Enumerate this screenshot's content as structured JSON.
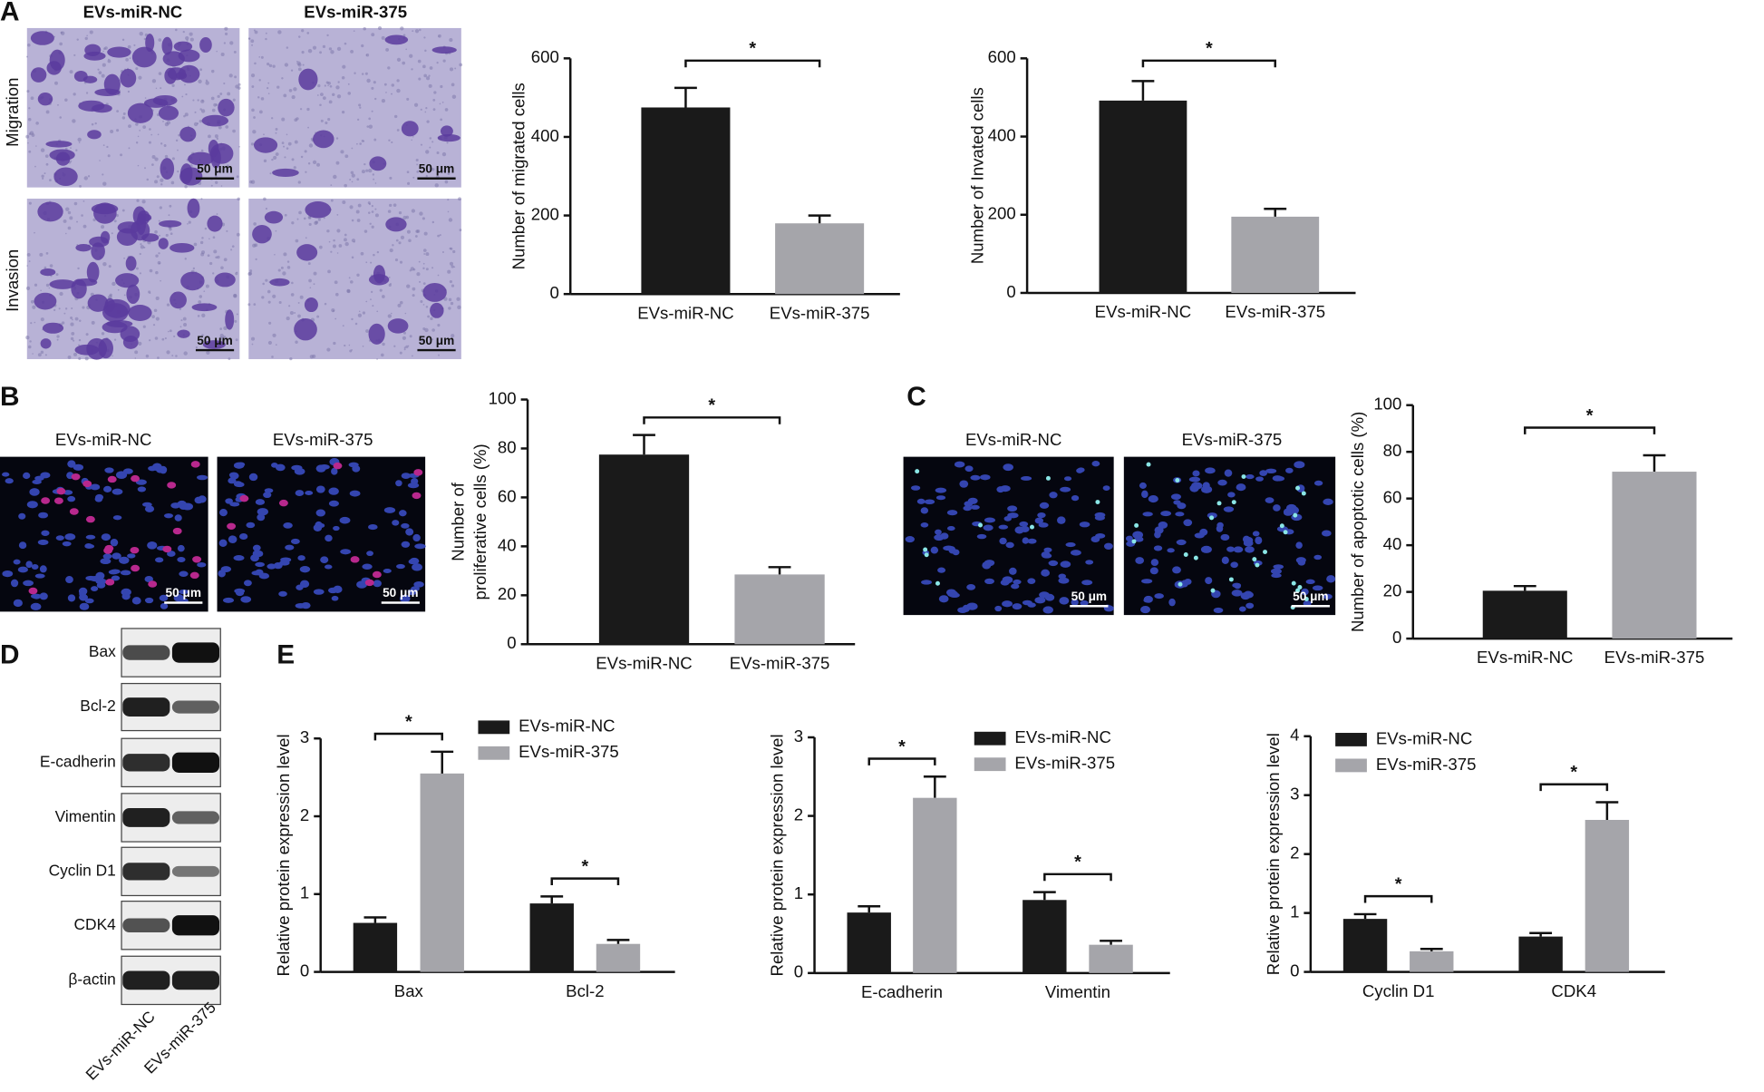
{
  "panel_labels": [
    "A",
    "B",
    "C",
    "D",
    "E"
  ],
  "micrographs": {
    "groups": [
      "EVs-miR-NC",
      "EVs-miR-375"
    ],
    "rows": [
      "Migration",
      "Invasion"
    ],
    "scale_bar": "50 μm"
  },
  "western_blot": {
    "proteins": [
      "Bax",
      "Bcl-2",
      "E-cadherin",
      "Vimentin",
      "Cyclin D1",
      "CDK4",
      "β-actin"
    ],
    "lanes": [
      "EVs-miR-NC",
      "EVs-miR-375"
    ]
  },
  "chart_data": [
    {
      "type": "bar",
      "ylabel": "Number of migrated cells",
      "categories": [
        "EVs-miR-NC",
        "EVs-miR-375"
      ],
      "values": [
        475,
        180
      ],
      "errors": [
        50,
        20
      ],
      "colors": [
        "#1a1a1a",
        "#a5a5aa"
      ],
      "ylim": [
        0,
        600
      ],
      "yticks": [
        0,
        200,
        400,
        600
      ],
      "annotations": [
        "*"
      ]
    },
    {
      "type": "bar",
      "ylabel": "Number of Invated cells",
      "categories": [
        "EVs-miR-NC",
        "EVs-miR-375"
      ],
      "values": [
        492,
        195
      ],
      "errors": [
        50,
        20
      ],
      "colors": [
        "#1a1a1a",
        "#a5a5aa"
      ],
      "ylim": [
        0,
        600
      ],
      "yticks": [
        0,
        200,
        400,
        600
      ],
      "annotations": [
        "*"
      ]
    },
    {
      "type": "bar",
      "ylabel": [
        "Number of",
        "proliferative cells (%)"
      ],
      "categories": [
        "EVs-miR-NC",
        "EVs-miR-375"
      ],
      "values": [
        77.5,
        28.5
      ],
      "errors": [
        8,
        3
      ],
      "colors": [
        "#1a1a1a",
        "#a5a5aa"
      ],
      "ylim": [
        0,
        100
      ],
      "yticks": [
        0,
        20,
        40,
        60,
        80,
        100
      ],
      "annotations": [
        "*"
      ]
    },
    {
      "type": "bar",
      "ylabel": "Number of apoptotic cells (%)",
      "categories": [
        "EVs-miR-NC",
        "EVs-miR-375"
      ],
      "values": [
        20.5,
        71.5
      ],
      "errors": [
        2,
        7
      ],
      "colors": [
        "#1a1a1a",
        "#a5a5aa"
      ],
      "ylim": [
        0,
        100
      ],
      "yticks": [
        0,
        20,
        40,
        60,
        80,
        100
      ],
      "annotations": [
        "*"
      ]
    },
    {
      "type": "grouped_bar",
      "ylabel": "Relative protein expression level",
      "categories": [
        "Bax",
        "Bcl-2"
      ],
      "series": [
        {
          "name": "EVs-miR-NC",
          "color": "#1a1a1a",
          "values": [
            0.63,
            0.88
          ],
          "errors": [
            0.07,
            0.09
          ]
        },
        {
          "name": "EVs-miR-375",
          "color": "#a5a5aa",
          "values": [
            2.55,
            0.36
          ],
          "errors": [
            0.28,
            0.05
          ]
        }
      ],
      "ylim": [
        0,
        3
      ],
      "yticks": [
        0,
        1,
        2,
        3
      ],
      "annotations": [
        "*",
        "*"
      ],
      "legend": "top-right"
    },
    {
      "type": "grouped_bar",
      "ylabel": "Relative protein expression level",
      "categories": [
        "E-cadherin",
        "Vimentin"
      ],
      "series": [
        {
          "name": "EVs-miR-NC",
          "color": "#1a1a1a",
          "values": [
            0.77,
            0.93
          ],
          "errors": [
            0.08,
            0.1
          ]
        },
        {
          "name": "EVs-miR-375",
          "color": "#a5a5aa",
          "values": [
            2.23,
            0.36
          ],
          "errors": [
            0.27,
            0.05
          ]
        }
      ],
      "ylim": [
        0,
        3
      ],
      "yticks": [
        0,
        1,
        2,
        3
      ],
      "annotations": [
        "*",
        "*"
      ],
      "legend": "top-right"
    },
    {
      "type": "grouped_bar",
      "ylabel": "Relative protein expression level",
      "categories": [
        "Cyclin D1",
        "CDK4"
      ],
      "series": [
        {
          "name": "EVs-miR-NC",
          "color": "#1a1a1a",
          "values": [
            0.9,
            0.6
          ],
          "errors": [
            0.08,
            0.06
          ]
        },
        {
          "name": "EVs-miR-375",
          "color": "#a5a5aa",
          "values": [
            0.35,
            2.58
          ],
          "errors": [
            0.04,
            0.3
          ]
        }
      ],
      "ylim": [
        0,
        4
      ],
      "yticks": [
        0,
        1,
        2,
        3,
        4
      ],
      "annotations": [
        "*",
        "*"
      ],
      "legend": "top-left"
    }
  ]
}
